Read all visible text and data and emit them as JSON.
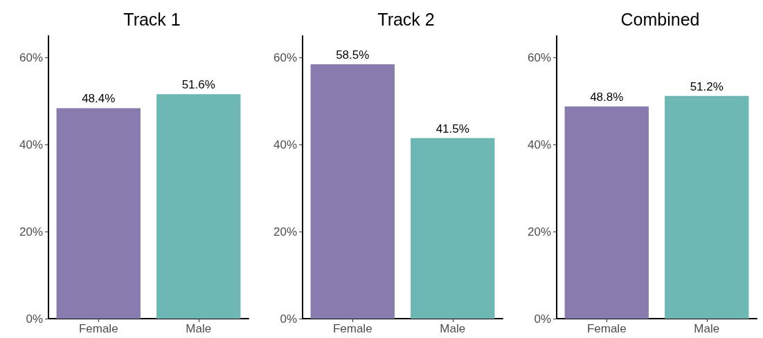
{
  "chart_data": [
    {
      "type": "bar",
      "title": "Track 1",
      "categories": [
        "Female",
        "Male"
      ],
      "values": [
        48.4,
        51.6
      ],
      "colors": [
        "#877cad",
        "#6db8b4"
      ],
      "value_labels": [
        "48.4%",
        "51.6%"
      ],
      "ylim": [
        0,
        65
      ],
      "yticks": [
        {
          "value": 0,
          "label": "0%"
        },
        {
          "value": 20,
          "label": "20%"
        },
        {
          "value": 40,
          "label": "40%"
        },
        {
          "value": 60,
          "label": "60%"
        }
      ]
    },
    {
      "type": "bar",
      "title": "Track 2",
      "categories": [
        "Female",
        "Male"
      ],
      "values": [
        58.5,
        41.5
      ],
      "colors": [
        "#877cad",
        "#6db8b4"
      ],
      "value_labels": [
        "58.5%",
        "41.5%"
      ],
      "ylim": [
        0,
        65
      ],
      "yticks": [
        {
          "value": 0,
          "label": "0%"
        },
        {
          "value": 20,
          "label": "20%"
        },
        {
          "value": 40,
          "label": "40%"
        },
        {
          "value": 60,
          "label": "60%"
        }
      ]
    },
    {
      "type": "bar",
      "title": "Combined",
      "categories": [
        "Female",
        "Male"
      ],
      "values": [
        48.8,
        51.2
      ],
      "colors": [
        "#877cad",
        "#6db8b4"
      ],
      "value_labels": [
        "48.8%",
        "51.2%"
      ],
      "ylim": [
        0,
        65
      ],
      "yticks": [
        {
          "value": 0,
          "label": "0%"
        },
        {
          "value": 20,
          "label": "20%"
        },
        {
          "value": 40,
          "label": "40%"
        },
        {
          "value": 60,
          "label": "60%"
        }
      ]
    }
  ]
}
